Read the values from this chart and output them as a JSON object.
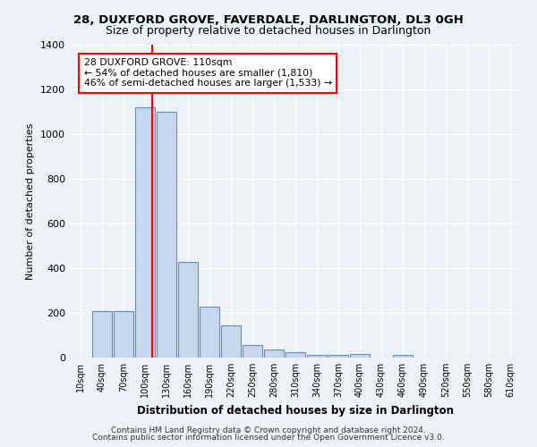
{
  "title1": "28, DUXFORD GROVE, FAVERDALE, DARLINGTON, DL3 0GH",
  "title2": "Size of property relative to detached houses in Darlington",
  "xlabel": "Distribution of detached houses by size in Darlington",
  "ylabel": "Number of detached properties",
  "bar_labels": [
    "10sqm",
    "40sqm",
    "70sqm",
    "100sqm",
    "130sqm",
    "160sqm",
    "190sqm",
    "220sqm",
    "250sqm",
    "280sqm",
    "310sqm",
    "340sqm",
    "370sqm",
    "400sqm",
    "430sqm",
    "460sqm",
    "490sqm",
    "520sqm",
    "550sqm",
    "580sqm",
    "610sqm"
  ],
  "bar_values": [
    0,
    207,
    207,
    1120,
    1100,
    430,
    230,
    145,
    57,
    38,
    25,
    13,
    13,
    18,
    0,
    13,
    0,
    0,
    0,
    0,
    0
  ],
  "bar_color": "#c5d8f0",
  "bar_edge_color": "#5b8fc9",
  "vline_x": 3,
  "vline_color": "red",
  "annotation_text": "28 DUXFORD GROVE: 110sqm\n← 54% of detached houses are smaller (1,810)\n46% of semi-detached houses are larger (1,533) →",
  "footer1": "Contains HM Land Registry data © Crown copyright and database right 2024.",
  "footer2": "Contains public sector information licensed under the Open Government Licence v3.0.",
  "bg_color": "#eef2f8",
  "ylim": [
    0,
    1400
  ],
  "yticks": [
    0,
    200,
    400,
    600,
    800,
    1000,
    1200,
    1400
  ]
}
